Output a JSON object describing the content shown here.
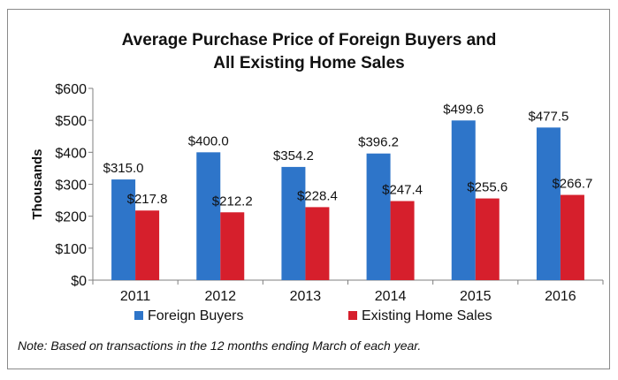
{
  "chart_data": {
    "type": "bar",
    "title_line1": "Average Purchase Price of Foreign Buyers and",
    "title_line2": "All Existing Home Sales",
    "ylabel": "Thousands",
    "xlabel": "",
    "categories": [
      "2011",
      "2012",
      "2013",
      "2014",
      "2015",
      "2016"
    ],
    "series": [
      {
        "name": "Foreign Buyers",
        "color": "#2e75c9",
        "values": [
          315.0,
          400.0,
          354.2,
          396.2,
          499.6,
          477.5
        ],
        "labels": [
          "$315.0",
          "$400.0",
          "$354.2",
          "$396.2",
          "$499.6",
          "$477.5"
        ]
      },
      {
        "name": "Existing Home Sales",
        "color": "#d61f2c",
        "values": [
          217.8,
          212.2,
          228.4,
          247.4,
          255.6,
          266.7
        ],
        "labels": [
          "$217.8",
          "$212.2",
          "$228.4",
          "$247.4",
          "$255.6",
          "$266.7"
        ]
      }
    ],
    "ylim": [
      0,
      600
    ],
    "yticks": [
      0,
      100,
      200,
      300,
      400,
      500,
      600
    ],
    "ytick_labels": [
      "$0",
      "$100",
      "$200",
      "$300",
      "$400",
      "$500",
      "$600"
    ],
    "grid": false,
    "legend_position": "bottom"
  },
  "note": "Note: Based on transactions in the 12 months ending March of each year."
}
